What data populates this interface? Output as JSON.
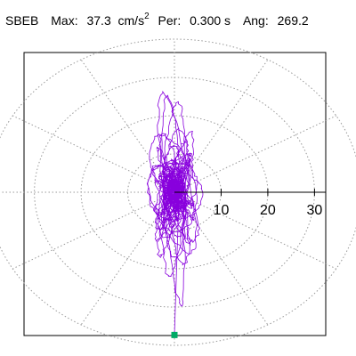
{
  "header": {
    "station": "SBEB",
    "max_label": "Max:",
    "max_value": "37.3",
    "max_unit": "cm/s",
    "max_exp": "2",
    "per_label": "Per:",
    "per_value": "0.300 s",
    "ang_label": "Ang:",
    "ang_value": "269.2"
  },
  "chart_data": {
    "type": "line",
    "coordinate_system": "polar",
    "radial_ticks": [
      10,
      20,
      30
    ],
    "radial_tick_labels": [
      "10",
      "20",
      "30"
    ],
    "rlim": [
      0,
      40
    ],
    "grid": true,
    "grid_style": "dotted",
    "angular_gridlines_deg": [
      0,
      30,
      60,
      90,
      120,
      150,
      180,
      210,
      240,
      270,
      300,
      330
    ],
    "max_point": {
      "x": 0,
      "y": -37.3
    },
    "colors": {
      "trace": "#8800dd",
      "max_marker": "#00aa66",
      "grid": "#999999"
    }
  }
}
